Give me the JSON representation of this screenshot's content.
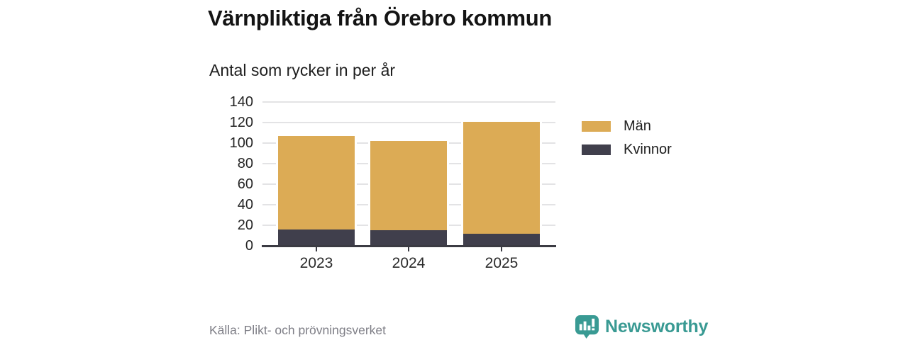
{
  "header": {
    "title": "Värnpliktiga från Örebro kommun",
    "subtitle": "Antal som rycker in per år"
  },
  "chart_data": {
    "type": "bar",
    "stacked": true,
    "categories": [
      "2023",
      "2024",
      "2025"
    ],
    "series": [
      {
        "name": "Män",
        "values": [
          91,
          87,
          109
        ],
        "color": "#DCAB55"
      },
      {
        "name": "Kvinnor",
        "values": [
          16,
          15,
          12
        ],
        "color": "#403F4C"
      }
    ],
    "totals": [
      107,
      102,
      121
    ],
    "title": "Värnpliktiga från Örebro kommun",
    "subtitle": "Antal som rycker in per år",
    "xlabel": "",
    "ylabel": "",
    "ylim": [
      0,
      140
    ],
    "yticks": [
      0,
      20,
      40,
      60,
      80,
      100,
      120,
      140
    ],
    "grid": true,
    "legend_position": "right",
    "stack_order_bottom_to_top": [
      "Kvinnor",
      "Män"
    ]
  },
  "footer": {
    "source": "Källa: Plikt- och prövningsverket",
    "brand": "Newsworthy"
  },
  "colors": {
    "axis": "#3B3B43",
    "grid": "#E3E3E5",
    "brand_teal": "#399A93"
  }
}
